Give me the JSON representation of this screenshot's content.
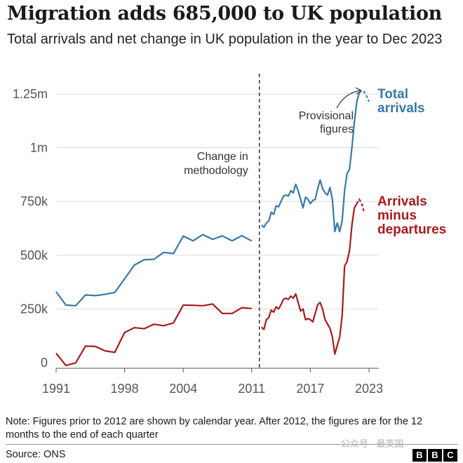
{
  "header": {
    "title": "Migration adds 685,000 to UK population",
    "subtitle": "Total arrivals and net change in UK population in the year to Dec 2023"
  },
  "chart_data": {
    "type": "line",
    "x_ticks": [
      "1991",
      "1998",
      "2004",
      "2011",
      "2017",
      "2023"
    ],
    "y_ticks": [
      "0",
      "250k",
      "500k",
      "750k",
      "1m",
      "1.25m"
    ],
    "ylim": [
      0,
      1300000
    ],
    "xlim": [
      1991,
      2024
    ],
    "grid": true,
    "series": [
      {
        "name": "Total arrivals",
        "color": "#3a78a8",
        "annual": [
          [
            1991,
            330000
          ],
          [
            1992,
            268000
          ],
          [
            1993,
            265000
          ],
          [
            1994,
            315000
          ],
          [
            1995,
            312000
          ],
          [
            1996,
            318000
          ],
          [
            1997,
            327000
          ],
          [
            1998,
            390000
          ],
          [
            1999,
            454000
          ],
          [
            2000,
            479000
          ],
          [
            2001,
            481000
          ],
          [
            2002,
            513000
          ],
          [
            2003,
            508000
          ],
          [
            2004,
            589000
          ],
          [
            2005,
            567000
          ],
          [
            2006,
            596000
          ],
          [
            2007,
            574000
          ],
          [
            2008,
            590000
          ],
          [
            2009,
            567000
          ],
          [
            2010,
            591000
          ],
          [
            2011,
            566000
          ]
        ],
        "quarterly": [
          [
            2012.0,
            640000
          ],
          [
            2012.25,
            630000
          ],
          [
            2012.5,
            650000
          ],
          [
            2012.75,
            660000
          ],
          [
            2013.0,
            700000
          ],
          [
            2013.25,
            690000
          ],
          [
            2013.5,
            730000
          ],
          [
            2013.75,
            725000
          ],
          [
            2014.0,
            750000
          ],
          [
            2014.25,
            775000
          ],
          [
            2014.5,
            780000
          ],
          [
            2014.75,
            775000
          ],
          [
            2015.0,
            800000
          ],
          [
            2015.25,
            790000
          ],
          [
            2015.5,
            830000
          ],
          [
            2015.75,
            800000
          ],
          [
            2016.0,
            760000
          ],
          [
            2016.25,
            720000
          ],
          [
            2016.5,
            770000
          ],
          [
            2016.75,
            760000
          ],
          [
            2017.0,
            740000
          ],
          [
            2017.25,
            755000
          ],
          [
            2017.5,
            760000
          ],
          [
            2017.75,
            810000
          ],
          [
            2018.0,
            850000
          ],
          [
            2018.25,
            810000
          ],
          [
            2018.5,
            790000
          ],
          [
            2018.75,
            780000
          ],
          [
            2019.0,
            815000
          ],
          [
            2019.25,
            760000
          ],
          [
            2019.5,
            610000
          ],
          [
            2019.75,
            650000
          ],
          [
            2020.0,
            610000
          ],
          [
            2020.25,
            660000
          ],
          [
            2020.5,
            800000
          ],
          [
            2020.75,
            880000
          ],
          [
            2021.0,
            900000
          ],
          [
            2021.25,
            1000000
          ],
          [
            2021.5,
            1120000
          ],
          [
            2021.75,
            1215000
          ],
          [
            2022.0,
            1255000
          ]
        ],
        "provisional": [
          [
            2022.0,
            1255000
          ],
          [
            2022.25,
            1265000
          ],
          [
            2022.5,
            1260000
          ],
          [
            2022.75,
            1240000
          ],
          [
            2023.0,
            1215000
          ]
        ]
      },
      {
        "name": "Arrivals minus departures",
        "color": "#a61b1e",
        "annual": [
          [
            1991,
            44000
          ],
          [
            1992,
            -13000
          ],
          [
            1993,
            -1000
          ],
          [
            1994,
            77000
          ],
          [
            1995,
            76000
          ],
          [
            1996,
            55000
          ],
          [
            1997,
            48000
          ],
          [
            1998,
            140000
          ],
          [
            1999,
            163000
          ],
          [
            2000,
            158000
          ],
          [
            2001,
            179000
          ],
          [
            2002,
            172000
          ],
          [
            2003,
            185000
          ],
          [
            2004,
            268000
          ],
          [
            2005,
            267000
          ],
          [
            2006,
            265000
          ],
          [
            2007,
            273000
          ],
          [
            2008,
            229000
          ],
          [
            2009,
            229000
          ],
          [
            2010,
            256000
          ],
          [
            2011,
            252000
          ]
        ],
        "quarterly": [
          [
            2012.0,
            165000
          ],
          [
            2012.25,
            155000
          ],
          [
            2012.5,
            200000
          ],
          [
            2012.75,
            210000
          ],
          [
            2013.0,
            245000
          ],
          [
            2013.25,
            235000
          ],
          [
            2013.5,
            260000
          ],
          [
            2013.75,
            250000
          ],
          [
            2014.0,
            270000
          ],
          [
            2014.25,
            295000
          ],
          [
            2014.5,
            300000
          ],
          [
            2014.75,
            295000
          ],
          [
            2015.0,
            310000
          ],
          [
            2015.25,
            300000
          ],
          [
            2015.5,
            320000
          ],
          [
            2015.75,
            280000
          ],
          [
            2016.0,
            240000
          ],
          [
            2016.25,
            250000
          ],
          [
            2016.5,
            200000
          ],
          [
            2016.75,
            205000
          ],
          [
            2017.0,
            200000
          ],
          [
            2017.25,
            190000
          ],
          [
            2017.5,
            230000
          ],
          [
            2017.75,
            270000
          ],
          [
            2018.0,
            280000
          ],
          [
            2018.25,
            250000
          ],
          [
            2018.5,
            200000
          ],
          [
            2018.75,
            180000
          ],
          [
            2019.0,
            160000
          ],
          [
            2019.25,
            120000
          ],
          [
            2019.5,
            40000
          ],
          [
            2019.75,
            80000
          ],
          [
            2020.0,
            120000
          ],
          [
            2020.25,
            220000
          ],
          [
            2020.5,
            450000
          ],
          [
            2020.75,
            470000
          ],
          [
            2021.0,
            520000
          ],
          [
            2021.25,
            640000
          ],
          [
            2021.5,
            720000
          ],
          [
            2021.75,
            740000
          ]
        ],
        "provisional": [
          [
            2021.75,
            740000
          ],
          [
            2022.0,
            760000
          ],
          [
            2022.25,
            740000
          ],
          [
            2022.5,
            700000
          ]
        ]
      }
    ],
    "series_labels": [
      {
        "lines": [
          "Total",
          "arrivals"
        ],
        "color": "#3a78a8"
      },
      {
        "lines": [
          "Arrivals",
          "minus",
          "departures"
        ],
        "color": "#a61b1e"
      }
    ],
    "annotations": {
      "methodology_year": 2012,
      "methodology_label": [
        "Change in",
        "methodology"
      ],
      "provisional_label": [
        "Provisional",
        "figures"
      ]
    }
  },
  "footer": {
    "note": "Note: Figures prior to 2012 are shown by calendar year. After 2012, the figures are for the 12 months to the end of each quarter",
    "source": "Source: ONS",
    "watermark": "公众号 · 最英国",
    "logo_letters": [
      "B",
      "B",
      "C"
    ]
  }
}
